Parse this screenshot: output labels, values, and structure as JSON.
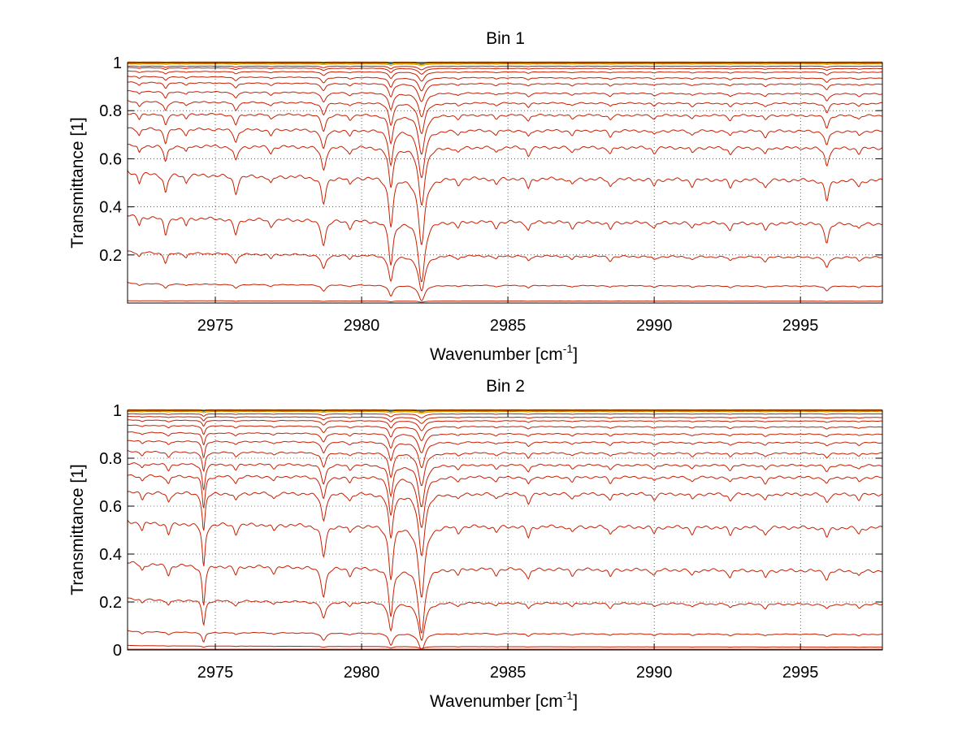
{
  "chart_data": [
    {
      "type": "line",
      "title": "Bin 1",
      "xlabel": "Wavenumber [cm",
      "xlabel_sup": "-1",
      "xlabel_end": "]",
      "ylabel": "Transmittance [1]",
      "xlim": [
        2972,
        2997.8
      ],
      "ylim": [
        0,
        1
      ],
      "xticks": [
        2975,
        2980,
        2985,
        2990,
        2995
      ],
      "xtick_labels": [
        "2975",
        "2980",
        "2985",
        "2990",
        "2995"
      ],
      "yticks": [
        0.2,
        0.4,
        0.6,
        0.8,
        1
      ],
      "ytick_labels": [
        "0.2",
        "0.4",
        "0.6",
        "0.8",
        "1"
      ],
      "grid": true,
      "series_color": "#c81e00",
      "top_series_colors": [
        "#ff7700",
        "#1f77b4",
        "#2ca02c",
        "#ffcc00"
      ],
      "absorption_lines": [
        {
          "x": 2972.4,
          "depth": 0.06,
          "width": 0.06
        },
        {
          "x": 2973.3,
          "depth": 0.12,
          "width": 0.07
        },
        {
          "x": 2974.0,
          "depth": 0.05,
          "width": 0.06
        },
        {
          "x": 2975.7,
          "depth": 0.11,
          "width": 0.08
        },
        {
          "x": 2976.9,
          "depth": 0.05,
          "width": 0.07
        },
        {
          "x": 2978.7,
          "depth": 0.17,
          "width": 0.09
        },
        {
          "x": 2979.6,
          "depth": 0.05,
          "width": 0.07
        },
        {
          "x": 2981.0,
          "depth": 0.3,
          "width": 0.09
        },
        {
          "x": 2982.05,
          "depth": 0.42,
          "width": 0.13
        },
        {
          "x": 2983.3,
          "depth": 0.04,
          "width": 0.07
        },
        {
          "x": 2984.6,
          "depth": 0.04,
          "width": 0.07
        },
        {
          "x": 2985.7,
          "depth": 0.06,
          "width": 0.07
        },
        {
          "x": 2987.2,
          "depth": 0.04,
          "width": 0.07
        },
        {
          "x": 2988.5,
          "depth": 0.05,
          "width": 0.07
        },
        {
          "x": 2990.0,
          "depth": 0.04,
          "width": 0.07
        },
        {
          "x": 2991.3,
          "depth": 0.04,
          "width": 0.07
        },
        {
          "x": 2992.6,
          "depth": 0.05,
          "width": 0.07
        },
        {
          "x": 2993.8,
          "depth": 0.05,
          "width": 0.07
        },
        {
          "x": 2995.9,
          "depth": 0.13,
          "width": 0.08
        },
        {
          "x": 2997.0,
          "depth": 0.04,
          "width": 0.07
        }
      ],
      "series": [
        {
          "start": 1.0,
          "end": 1.0,
          "scale": 0.0
        },
        {
          "start": 0.995,
          "end": 0.995,
          "scale": 0.03
        },
        {
          "start": 0.985,
          "end": 0.985,
          "scale": 0.06
        },
        {
          "start": 0.98,
          "end": 0.975,
          "scale": 0.1
        },
        {
          "start": 0.965,
          "end": 0.96,
          "scale": 0.15
        },
        {
          "start": 0.945,
          "end": 0.935,
          "scale": 0.22
        },
        {
          "start": 0.92,
          "end": 0.91,
          "scale": 0.3
        },
        {
          "start": 0.885,
          "end": 0.87,
          "scale": 0.4
        },
        {
          "start": 0.84,
          "end": 0.83,
          "scale": 0.5
        },
        {
          "start": 0.79,
          "end": 0.78,
          "scale": 0.65
        },
        {
          "start": 0.73,
          "end": 0.715,
          "scale": 0.8
        },
        {
          "start": 0.66,
          "end": 0.645,
          "scale": 0.95
        },
        {
          "start": 0.55,
          "end": 0.51,
          "scale": 1.1
        },
        {
          "start": 0.37,
          "end": 0.33,
          "scale": 1.0
        },
        {
          "start": 0.22,
          "end": 0.19,
          "scale": 0.6
        },
        {
          "start": 0.085,
          "end": 0.07,
          "scale": 0.25
        },
        {
          "start": 0.01,
          "end": 0.008,
          "scale": 0.02
        }
      ]
    },
    {
      "type": "line",
      "title": "Bin 2",
      "xlabel": "Wavenumber [cm",
      "xlabel_sup": "-1",
      "xlabel_end": "]",
      "ylabel": "Transmittance [1]",
      "xlim": [
        2972,
        2997.8
      ],
      "ylim": [
        0,
        1
      ],
      "xticks": [
        2975,
        2980,
        2985,
        2990,
        2995
      ],
      "xtick_labels": [
        "2975",
        "2980",
        "2985",
        "2990",
        "2995"
      ],
      "yticks": [
        0,
        0.2,
        0.4,
        0.6,
        0.8,
        1
      ],
      "ytick_labels": [
        "0",
        "0.2",
        "0.4",
        "0.6",
        "0.8",
        "1"
      ],
      "grid": true,
      "series_color": "#c81e00",
      "top_series_colors": [
        "#ff7700",
        "#1f77b4",
        "#2ca02c",
        "#ffcc00"
      ],
      "absorption_lines": [
        {
          "x": 2972.5,
          "depth": 0.05,
          "width": 0.06
        },
        {
          "x": 2973.4,
          "depth": 0.07,
          "width": 0.07
        },
        {
          "x": 2974.6,
          "depth": 0.28,
          "width": 0.06
        },
        {
          "x": 2975.7,
          "depth": 0.06,
          "width": 0.07
        },
        {
          "x": 2977.0,
          "depth": 0.04,
          "width": 0.07
        },
        {
          "x": 2978.7,
          "depth": 0.2,
          "width": 0.09
        },
        {
          "x": 2979.6,
          "depth": 0.05,
          "width": 0.07
        },
        {
          "x": 2981.0,
          "depth": 0.33,
          "width": 0.09
        },
        {
          "x": 2982.05,
          "depth": 0.45,
          "width": 0.13
        },
        {
          "x": 2983.3,
          "depth": 0.04,
          "width": 0.07
        },
        {
          "x": 2984.6,
          "depth": 0.04,
          "width": 0.07
        },
        {
          "x": 2985.7,
          "depth": 0.07,
          "width": 0.07
        },
        {
          "x": 2987.2,
          "depth": 0.04,
          "width": 0.07
        },
        {
          "x": 2988.5,
          "depth": 0.05,
          "width": 0.07
        },
        {
          "x": 2990.0,
          "depth": 0.04,
          "width": 0.07
        },
        {
          "x": 2991.3,
          "depth": 0.04,
          "width": 0.07
        },
        {
          "x": 2992.6,
          "depth": 0.05,
          "width": 0.07
        },
        {
          "x": 2993.8,
          "depth": 0.05,
          "width": 0.07
        },
        {
          "x": 2995.9,
          "depth": 0.06,
          "width": 0.08
        },
        {
          "x": 2997.0,
          "depth": 0.04,
          "width": 0.07
        }
      ],
      "series": [
        {
          "start": 1.0,
          "end": 1.0,
          "scale": 0.0
        },
        {
          "start": 0.995,
          "end": 0.995,
          "scale": 0.03
        },
        {
          "start": 0.985,
          "end": 0.985,
          "scale": 0.06
        },
        {
          "start": 0.975,
          "end": 0.97,
          "scale": 0.1
        },
        {
          "start": 0.96,
          "end": 0.955,
          "scale": 0.15
        },
        {
          "start": 0.94,
          "end": 0.93,
          "scale": 0.22
        },
        {
          "start": 0.91,
          "end": 0.9,
          "scale": 0.3
        },
        {
          "start": 0.875,
          "end": 0.865,
          "scale": 0.4
        },
        {
          "start": 0.83,
          "end": 0.82,
          "scale": 0.5
        },
        {
          "start": 0.78,
          "end": 0.77,
          "scale": 0.65
        },
        {
          "start": 0.73,
          "end": 0.72,
          "scale": 0.8
        },
        {
          "start": 0.66,
          "end": 0.65,
          "scale": 0.95
        },
        {
          "start": 0.54,
          "end": 0.51,
          "scale": 1.1
        },
        {
          "start": 0.37,
          "end": 0.33,
          "scale": 1.0
        },
        {
          "start": 0.22,
          "end": 0.19,
          "scale": 0.6
        },
        {
          "start": 0.08,
          "end": 0.065,
          "scale": 0.25
        },
        {
          "start": 0.02,
          "end": 0.012,
          "scale": 0.03
        },
        {
          "start": 0.003,
          "end": 0.003,
          "scale": 0.0
        }
      ]
    }
  ]
}
